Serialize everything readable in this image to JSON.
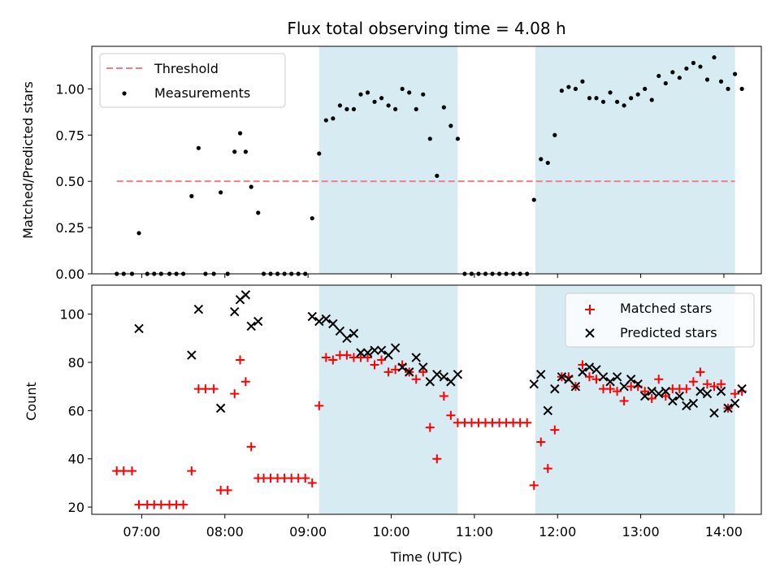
{
  "colors": {
    "threshold": "#f08080",
    "measurements": "#000000",
    "matched": "#ff0000",
    "predicted": "#000000",
    "shade": "#add8e6"
  },
  "chart_data": [
    {
      "type": "scatter",
      "title": "Flux total observing time = 4.08 h",
      "ylabel": "Matched/Predicted stars",
      "xlim": [
        "06:24",
        "14:27"
      ],
      "ylim": [
        0,
        1.23
      ],
      "yticks": [
        "0.00",
        "0.25",
        "0.50",
        "0.75",
        "1.00"
      ],
      "shaded_ranges": [
        [
          "09:08",
          "10:48"
        ],
        [
          "11:44",
          "14:08"
        ]
      ],
      "legend": {
        "position": "top-left",
        "entries": [
          "Threshold",
          "Measurements"
        ]
      },
      "series": [
        {
          "name": "Threshold",
          "kind": "dashed-line",
          "points": [
            [
              "06:42",
              0.5
            ],
            [
              "14:08",
              0.5
            ]
          ]
        },
        {
          "name": "Measurements",
          "kind": "dots",
          "points": [
            [
              "06:42",
              0
            ],
            [
              "06:47",
              0
            ],
            [
              "06:53",
              0
            ],
            [
              "06:58",
              0.22
            ],
            [
              "07:04",
              0
            ],
            [
              "07:09",
              0
            ],
            [
              "07:14",
              0
            ],
            [
              "07:20",
              0
            ],
            [
              "07:25",
              0
            ],
            [
              "07:30",
              0
            ],
            [
              "07:36",
              0.42
            ],
            [
              "07:41",
              0.68
            ],
            [
              "07:46",
              0
            ],
            [
              "07:52",
              0
            ],
            [
              "07:57",
              0.44
            ],
            [
              "08:02",
              0
            ],
            [
              "08:07",
              0.66
            ],
            [
              "08:11",
              0.76
            ],
            [
              "08:15",
              0.66
            ],
            [
              "08:19",
              0.47
            ],
            [
              "08:24",
              0.33
            ],
            [
              "08:28",
              0
            ],
            [
              "08:33",
              0
            ],
            [
              "08:38",
              0
            ],
            [
              "08:43",
              0
            ],
            [
              "08:48",
              0
            ],
            [
              "08:53",
              0
            ],
            [
              "08:58",
              0
            ],
            [
              "09:03",
              0.3
            ],
            [
              "09:08",
              0.65
            ],
            [
              "09:13",
              0.83
            ],
            [
              "09:18",
              0.84
            ],
            [
              "09:23",
              0.91
            ],
            [
              "09:28",
              0.89
            ],
            [
              "09:33",
              0.89
            ],
            [
              "09:38",
              0.97
            ],
            [
              "09:43",
              0.98
            ],
            [
              "09:48",
              0.93
            ],
            [
              "09:53",
              0.95
            ],
            [
              "09:58",
              0.91
            ],
            [
              "10:03",
              0.89
            ],
            [
              "10:08",
              1.0
            ],
            [
              "10:13",
              0.98
            ],
            [
              "10:18",
              0.89
            ],
            [
              "10:23",
              0.97
            ],
            [
              "10:28",
              0.73
            ],
            [
              "10:33",
              0.53
            ],
            [
              "10:38",
              0.9
            ],
            [
              "10:43",
              0.8
            ],
            [
              "10:48",
              0.73
            ],
            [
              "10:53",
              0
            ],
            [
              "10:58",
              0
            ],
            [
              "11:03",
              0
            ],
            [
              "11:08",
              0
            ],
            [
              "11:13",
              0
            ],
            [
              "11:18",
              0
            ],
            [
              "11:23",
              0
            ],
            [
              "11:28",
              0
            ],
            [
              "11:33",
              0
            ],
            [
              "11:38",
              0
            ],
            [
              "11:43",
              0.4
            ],
            [
              "11:48",
              0.62
            ],
            [
              "11:53",
              0.6
            ],
            [
              "11:58",
              0.75
            ],
            [
              "12:03",
              0.99
            ],
            [
              "12:08",
              1.01
            ],
            [
              "12:13",
              1.0
            ],
            [
              "12:18",
              1.04
            ],
            [
              "12:23",
              0.95
            ],
            [
              "12:28",
              0.95
            ],
            [
              "12:33",
              0.93
            ],
            [
              "12:38",
              0.98
            ],
            [
              "12:43",
              0.93
            ],
            [
              "12:48",
              0.91
            ],
            [
              "12:53",
              0.95
            ],
            [
              "12:58",
              0.97
            ],
            [
              "13:03",
              1.0
            ],
            [
              "13:08",
              0.94
            ],
            [
              "13:13",
              1.07
            ],
            [
              "13:18",
              1.03
            ],
            [
              "13:23",
              1.09
            ],
            [
              "13:28",
              1.06
            ],
            [
              "13:33",
              1.11
            ],
            [
              "13:38",
              1.14
            ],
            [
              "13:43",
              1.12
            ],
            [
              "13:48",
              1.05
            ],
            [
              "13:53",
              1.17
            ],
            [
              "13:58",
              1.04
            ],
            [
              "14:03",
              1.0
            ],
            [
              "14:08",
              1.08
            ],
            [
              "14:13",
              1.0
            ]
          ]
        }
      ]
    },
    {
      "type": "scatter",
      "xlabel": "Time (UTC)",
      "ylabel": "Count",
      "xlim": [
        "06:24",
        "14:27"
      ],
      "ylim": [
        17,
        112
      ],
      "yticks": [
        "20",
        "40",
        "60",
        "80",
        "100"
      ],
      "xticks": [
        "07:00",
        "08:00",
        "09:00",
        "10:00",
        "11:00",
        "12:00",
        "13:00",
        "14:00"
      ],
      "shaded_ranges": [
        [
          "09:08",
          "10:48"
        ],
        [
          "11:44",
          "14:08"
        ]
      ],
      "legend": {
        "position": "top-right",
        "entries": [
          "Matched stars",
          "Predicted stars"
        ]
      },
      "series": [
        {
          "name": "Matched stars",
          "kind": "plus",
          "points": [
            [
              "06:42",
              35
            ],
            [
              "06:47",
              35
            ],
            [
              "06:53",
              35
            ],
            [
              "06:58",
              21
            ],
            [
              "07:04",
              21
            ],
            [
              "07:09",
              21
            ],
            [
              "07:14",
              21
            ],
            [
              "07:20",
              21
            ],
            [
              "07:25",
              21
            ],
            [
              "07:30",
              21
            ],
            [
              "07:36",
              35
            ],
            [
              "07:41",
              69
            ],
            [
              "07:46",
              69
            ],
            [
              "07:52",
              69
            ],
            [
              "07:57",
              27
            ],
            [
              "08:02",
              27
            ],
            [
              "08:07",
              67
            ],
            [
              "08:11",
              81
            ],
            [
              "08:15",
              72
            ],
            [
              "08:19",
              45
            ],
            [
              "08:24",
              32
            ],
            [
              "08:28",
              32
            ],
            [
              "08:33",
              32
            ],
            [
              "08:38",
              32
            ],
            [
              "08:43",
              32
            ],
            [
              "08:48",
              32
            ],
            [
              "08:53",
              32
            ],
            [
              "08:58",
              32
            ],
            [
              "09:03",
              30
            ],
            [
              "09:08",
              62
            ],
            [
              "09:13",
              82
            ],
            [
              "09:18",
              81
            ],
            [
              "09:23",
              83
            ],
            [
              "09:28",
              83
            ],
            [
              "09:33",
              82
            ],
            [
              "09:38",
              82
            ],
            [
              "09:43",
              82
            ],
            [
              "09:48",
              79
            ],
            [
              "09:53",
              81
            ],
            [
              "09:58",
              76
            ],
            [
              "10:03",
              77
            ],
            [
              "10:08",
              79
            ],
            [
              "10:13",
              76
            ],
            [
              "10:18",
              73
            ],
            [
              "10:23",
              76
            ],
            [
              "10:28",
              53
            ],
            [
              "10:33",
              40
            ],
            [
              "10:38",
              66
            ],
            [
              "10:43",
              58
            ],
            [
              "10:48",
              55
            ],
            [
              "10:53",
              55
            ],
            [
              "10:58",
              55
            ],
            [
              "11:03",
              55
            ],
            [
              "11:08",
              55
            ],
            [
              "11:13",
              55
            ],
            [
              "11:18",
              55
            ],
            [
              "11:23",
              55
            ],
            [
              "11:28",
              55
            ],
            [
              "11:33",
              55
            ],
            [
              "11:38",
              55
            ],
            [
              "11:43",
              29
            ],
            [
              "11:48",
              47
            ],
            [
              "11:53",
              36
            ],
            [
              "11:58",
              52
            ],
            [
              "12:03",
              74
            ],
            [
              "12:08",
              74
            ],
            [
              "12:13",
              70
            ],
            [
              "12:18",
              79
            ],
            [
              "12:23",
              74
            ],
            [
              "12:28",
              73
            ],
            [
              "12:33",
              69
            ],
            [
              "12:38",
              69
            ],
            [
              "12:43",
              68
            ],
            [
              "12:48",
              64
            ],
            [
              "12:53",
              70
            ],
            [
              "12:58",
              70
            ],
            [
              "13:03",
              68
            ],
            [
              "13:08",
              65
            ],
            [
              "13:13",
              73
            ],
            [
              "13:18",
              66
            ],
            [
              "13:23",
              69
            ],
            [
              "13:28",
              69
            ],
            [
              "13:33",
              69
            ],
            [
              "13:38",
              72
            ],
            [
              "13:43",
              76
            ],
            [
              "13:48",
              71
            ],
            [
              "13:53",
              70
            ],
            [
              "13:58",
              71
            ],
            [
              "14:03",
              61
            ],
            [
              "14:08",
              67
            ],
            [
              "14:13",
              68
            ]
          ]
        },
        {
          "name": "Predicted stars",
          "kind": "cross",
          "points": [
            [
              "06:58",
              94
            ],
            [
              "07:36",
              83
            ],
            [
              "07:41",
              102
            ],
            [
              "07:57",
              61
            ],
            [
              "08:07",
              101
            ],
            [
              "08:11",
              106
            ],
            [
              "08:15",
              108
            ],
            [
              "08:19",
              95
            ],
            [
              "08:24",
              97
            ],
            [
              "09:03",
              99
            ],
            [
              "09:08",
              97
            ],
            [
              "09:13",
              98
            ],
            [
              "09:18",
              96
            ],
            [
              "09:23",
              93
            ],
            [
              "09:28",
              90
            ],
            [
              "09:33",
              92
            ],
            [
              "09:38",
              84
            ],
            [
              "09:43",
              84
            ],
            [
              "09:48",
              85
            ],
            [
              "09:53",
              85
            ],
            [
              "09:58",
              83
            ],
            [
              "10:03",
              86
            ],
            [
              "10:08",
              78
            ],
            [
              "10:13",
              76
            ],
            [
              "10:18",
              82
            ],
            [
              "10:23",
              78
            ],
            [
              "10:28",
              72
            ],
            [
              "10:33",
              75
            ],
            [
              "10:38",
              74
            ],
            [
              "10:43",
              72
            ],
            [
              "10:48",
              75
            ],
            [
              "11:43",
              71
            ],
            [
              "11:48",
              75
            ],
            [
              "11:53",
              60
            ],
            [
              "11:58",
              69
            ],
            [
              "12:03",
              74
            ],
            [
              "12:08",
              73
            ],
            [
              "12:13",
              70
            ],
            [
              "12:18",
              76
            ],
            [
              "12:23",
              78
            ],
            [
              "12:28",
              77
            ],
            [
              "12:33",
              74
            ],
            [
              "12:38",
              72
            ],
            [
              "12:43",
              74
            ],
            [
              "12:48",
              70
            ],
            [
              "12:53",
              73
            ],
            [
              "12:58",
              71
            ],
            [
              "13:03",
              66
            ],
            [
              "13:08",
              68
            ],
            [
              "13:13",
              67
            ],
            [
              "13:18",
              68
            ],
            [
              "13:23",
              64
            ],
            [
              "13:28",
              66
            ],
            [
              "13:33",
              62
            ],
            [
              "13:38",
              63
            ],
            [
              "13:43",
              68
            ],
            [
              "13:48",
              67
            ],
            [
              "13:53",
              59
            ],
            [
              "13:58",
              68
            ],
            [
              "14:03",
              61
            ],
            [
              "14:08",
              63
            ],
            [
              "14:13",
              69
            ]
          ]
        }
      ]
    }
  ]
}
